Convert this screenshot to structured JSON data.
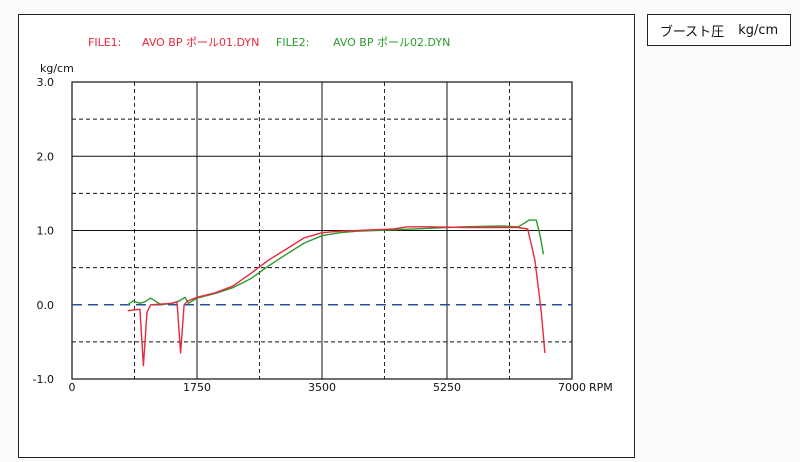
{
  "header": {
    "file1_label": "FILE1:",
    "file1_name": "AVO BP ポール01.DYN",
    "file2_label": "FILE2:",
    "file2_name": "AVO BP ポール02.DYN",
    "unit_box_title": "ブースト圧",
    "unit_box_unit": "kg/cm"
  },
  "colors": {
    "file1": "#e8283c",
    "file2": "#2c9a2c",
    "baseline": "#2a4f9a",
    "grid": "#111111"
  },
  "chart_data": {
    "type": "line",
    "title": "",
    "ylabel": "kg/cm",
    "xlabel": "RPM",
    "xlim": [
      0,
      7000
    ],
    "ylim": [
      -1.0,
      3.0
    ],
    "x_ticks": [
      "0",
      "1750",
      "3500",
      "5250",
      "7000"
    ],
    "y_ticks": [
      "3.0",
      "2.0",
      "1.0",
      "0.0",
      "-1.0"
    ],
    "grid": true,
    "legend_position": "top",
    "reference_line": {
      "y": 0.0,
      "style": "dashed"
    },
    "series": [
      {
        "name": "FILE1:  AVO BP ポール01.DYN",
        "color_key": "file1",
        "points": [
          [
            780,
            -0.08
          ],
          [
            950,
            -0.06
          ],
          [
            1000,
            -0.82
          ],
          [
            1050,
            -0.1
          ],
          [
            1100,
            0.0
          ],
          [
            1400,
            0.02
          ],
          [
            1470,
            0.04
          ],
          [
            1520,
            -0.65
          ],
          [
            1570,
            0.0
          ],
          [
            1620,
            0.05
          ],
          [
            1750,
            0.1
          ],
          [
            2000,
            0.16
          ],
          [
            2250,
            0.25
          ],
          [
            2500,
            0.42
          ],
          [
            2750,
            0.6
          ],
          [
            3000,
            0.75
          ],
          [
            3250,
            0.9
          ],
          [
            3500,
            0.97
          ],
          [
            3750,
            0.99
          ],
          [
            4000,
            1.0
          ],
          [
            4500,
            1.02
          ],
          [
            4700,
            1.05
          ],
          [
            5000,
            1.05
          ],
          [
            5500,
            1.04
          ],
          [
            6000,
            1.04
          ],
          [
            6250,
            1.04
          ],
          [
            6380,
            1.02
          ],
          [
            6480,
            0.6
          ],
          [
            6570,
            -0.1
          ],
          [
            6620,
            -0.65
          ]
        ]
      },
      {
        "name": "FILE2:  AVO BP ポール02.DYN",
        "color_key": "file2",
        "points": [
          [
            780,
            0.0
          ],
          [
            850,
            0.05
          ],
          [
            950,
            0.02
          ],
          [
            1020,
            0.04
          ],
          [
            1100,
            0.09
          ],
          [
            1250,
            0.0
          ],
          [
            1400,
            0.02
          ],
          [
            1500,
            0.05
          ],
          [
            1580,
            0.1
          ],
          [
            1630,
            0.02
          ],
          [
            1750,
            0.09
          ],
          [
            2000,
            0.15
          ],
          [
            2250,
            0.23
          ],
          [
            2500,
            0.35
          ],
          [
            2750,
            0.52
          ],
          [
            3000,
            0.68
          ],
          [
            3250,
            0.83
          ],
          [
            3500,
            0.93
          ],
          [
            3750,
            0.97
          ],
          [
            4000,
            0.99
          ],
          [
            4500,
            1.01
          ],
          [
            5000,
            1.03
          ],
          [
            5500,
            1.05
          ],
          [
            6000,
            1.06
          ],
          [
            6250,
            1.05
          ],
          [
            6400,
            1.14
          ],
          [
            6500,
            1.14
          ],
          [
            6560,
            0.9
          ],
          [
            6600,
            0.68
          ]
        ]
      }
    ]
  }
}
